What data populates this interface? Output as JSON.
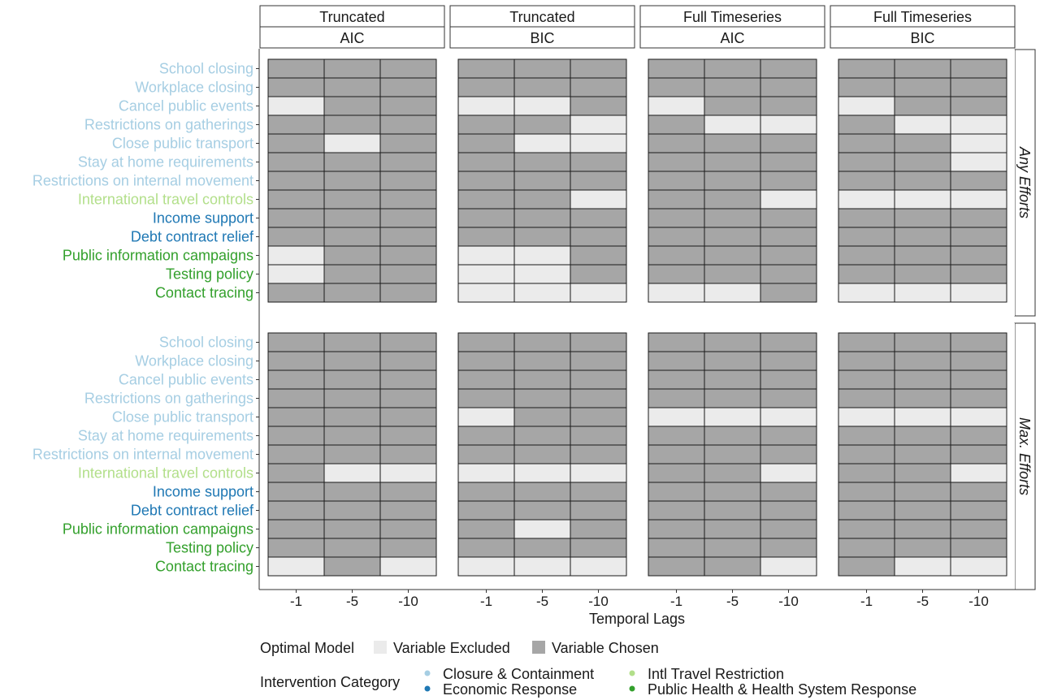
{
  "chart_data": {
    "type": "heatmap",
    "xlabel": "Temporal Lags",
    "x_ticks": [
      "-1",
      "-5",
      "-10"
    ],
    "columns": [
      {
        "top": "Truncated",
        "bottom": "AIC"
      },
      {
        "top": "Truncated",
        "bottom": "BIC"
      },
      {
        "top": "Full Timeseries",
        "bottom": "AIC"
      },
      {
        "top": "Full Timeseries",
        "bottom": "BIC"
      }
    ],
    "rows": [
      "Any Efforts",
      "Max. Efforts"
    ],
    "variables": [
      {
        "name": "School closing",
        "category": 0
      },
      {
        "name": "Workplace closing",
        "category": 0
      },
      {
        "name": "Cancel public events",
        "category": 0
      },
      {
        "name": "Restrictions on gatherings",
        "category": 0
      },
      {
        "name": "Close public transport",
        "category": 0
      },
      {
        "name": "Stay at home requirements",
        "category": 0
      },
      {
        "name": "Restrictions on internal movement",
        "category": 0
      },
      {
        "name": "International travel controls",
        "category": 2
      },
      {
        "name": "Income support",
        "category": 1
      },
      {
        "name": "Debt contract relief",
        "category": 1
      },
      {
        "name": "Public information campaigns",
        "category": 3
      },
      {
        "name": "Testing policy",
        "category": 3
      },
      {
        "name": "Contact tracing",
        "category": 3
      }
    ],
    "cell_values_note": "1 = Variable Chosen, 0 = Variable Excluded; indexed panels[row][col][variable][lag]",
    "panels": [
      [
        [
          [
            1,
            1,
            1
          ],
          [
            1,
            1,
            1
          ],
          [
            0,
            1,
            1
          ],
          [
            1,
            1,
            1
          ],
          [
            1,
            0,
            1
          ],
          [
            1,
            1,
            1
          ],
          [
            1,
            1,
            1
          ],
          [
            1,
            1,
            1
          ],
          [
            1,
            1,
            1
          ],
          [
            1,
            1,
            1
          ],
          [
            0,
            1,
            1
          ],
          [
            0,
            1,
            1
          ],
          [
            1,
            1,
            1
          ]
        ],
        [
          [
            1,
            1,
            1
          ],
          [
            1,
            1,
            1
          ],
          [
            0,
            0,
            1
          ],
          [
            1,
            1,
            0
          ],
          [
            1,
            0,
            0
          ],
          [
            1,
            1,
            1
          ],
          [
            1,
            1,
            1
          ],
          [
            1,
            1,
            0
          ],
          [
            1,
            1,
            1
          ],
          [
            1,
            1,
            1
          ],
          [
            0,
            0,
            1
          ],
          [
            0,
            0,
            1
          ],
          [
            0,
            0,
            0
          ]
        ],
        [
          [
            1,
            1,
            1
          ],
          [
            1,
            1,
            1
          ],
          [
            0,
            1,
            1
          ],
          [
            1,
            0,
            0
          ],
          [
            1,
            1,
            1
          ],
          [
            1,
            1,
            1
          ],
          [
            1,
            1,
            1
          ],
          [
            1,
            1,
            0
          ],
          [
            1,
            1,
            1
          ],
          [
            1,
            1,
            1
          ],
          [
            1,
            1,
            1
          ],
          [
            1,
            1,
            1
          ],
          [
            0,
            0,
            1
          ]
        ],
        [
          [
            1,
            1,
            1
          ],
          [
            1,
            1,
            1
          ],
          [
            0,
            1,
            1
          ],
          [
            1,
            0,
            0
          ],
          [
            1,
            1,
            0
          ],
          [
            1,
            1,
            0
          ],
          [
            1,
            1,
            1
          ],
          [
            0,
            0,
            0
          ],
          [
            1,
            1,
            1
          ],
          [
            1,
            1,
            1
          ],
          [
            1,
            1,
            1
          ],
          [
            1,
            1,
            1
          ],
          [
            0,
            0,
            0
          ]
        ]
      ],
      [
        [
          [
            1,
            1,
            1
          ],
          [
            1,
            1,
            1
          ],
          [
            1,
            1,
            1
          ],
          [
            1,
            1,
            1
          ],
          [
            1,
            1,
            1
          ],
          [
            1,
            1,
            1
          ],
          [
            1,
            1,
            1
          ],
          [
            1,
            0,
            0
          ],
          [
            1,
            1,
            1
          ],
          [
            1,
            1,
            1
          ],
          [
            1,
            1,
            1
          ],
          [
            1,
            1,
            1
          ],
          [
            0,
            1,
            0
          ]
        ],
        [
          [
            1,
            1,
            1
          ],
          [
            1,
            1,
            1
          ],
          [
            1,
            1,
            1
          ],
          [
            1,
            1,
            1
          ],
          [
            0,
            1,
            1
          ],
          [
            1,
            1,
            1
          ],
          [
            1,
            1,
            1
          ],
          [
            0,
            0,
            0
          ],
          [
            1,
            1,
            1
          ],
          [
            1,
            1,
            1
          ],
          [
            1,
            0,
            1
          ],
          [
            1,
            1,
            1
          ],
          [
            0,
            0,
            0
          ]
        ],
        [
          [
            1,
            1,
            1
          ],
          [
            1,
            1,
            1
          ],
          [
            1,
            1,
            1
          ],
          [
            1,
            1,
            1
          ],
          [
            0,
            0,
            0
          ],
          [
            1,
            1,
            1
          ],
          [
            1,
            1,
            1
          ],
          [
            1,
            1,
            0
          ],
          [
            1,
            1,
            1
          ],
          [
            1,
            1,
            1
          ],
          [
            1,
            1,
            1
          ],
          [
            1,
            1,
            1
          ],
          [
            1,
            1,
            0
          ]
        ],
        [
          [
            1,
            1,
            1
          ],
          [
            1,
            1,
            1
          ],
          [
            1,
            1,
            1
          ],
          [
            1,
            1,
            1
          ],
          [
            0,
            0,
            0
          ],
          [
            1,
            1,
            1
          ],
          [
            1,
            1,
            1
          ],
          [
            1,
            1,
            0
          ],
          [
            1,
            1,
            1
          ],
          [
            1,
            1,
            1
          ],
          [
            1,
            1,
            1
          ],
          [
            1,
            1,
            1
          ],
          [
            1,
            0,
            0
          ]
        ]
      ]
    ],
    "fill_colors": {
      "chosen": "#a6a6a6",
      "excluded": "#ebebeb"
    },
    "legend_fill": {
      "title": "Optimal Model",
      "items": [
        {
          "label": "Variable Excluded",
          "color": "#ebebeb"
        },
        {
          "label": "Variable Chosen",
          "color": "#a6a6a6"
        }
      ]
    },
    "legend_category": {
      "title": "Intervention Category",
      "items": [
        {
          "label": "Closure & Containment",
          "color": "#a6cee3"
        },
        {
          "label": "Economic Response",
          "color": "#1f78b4"
        },
        {
          "label": "Intl Travel Restriction",
          "color": "#b2df8a"
        },
        {
          "label": "Public Health & Health System Response",
          "color": "#33a02c"
        }
      ]
    }
  }
}
